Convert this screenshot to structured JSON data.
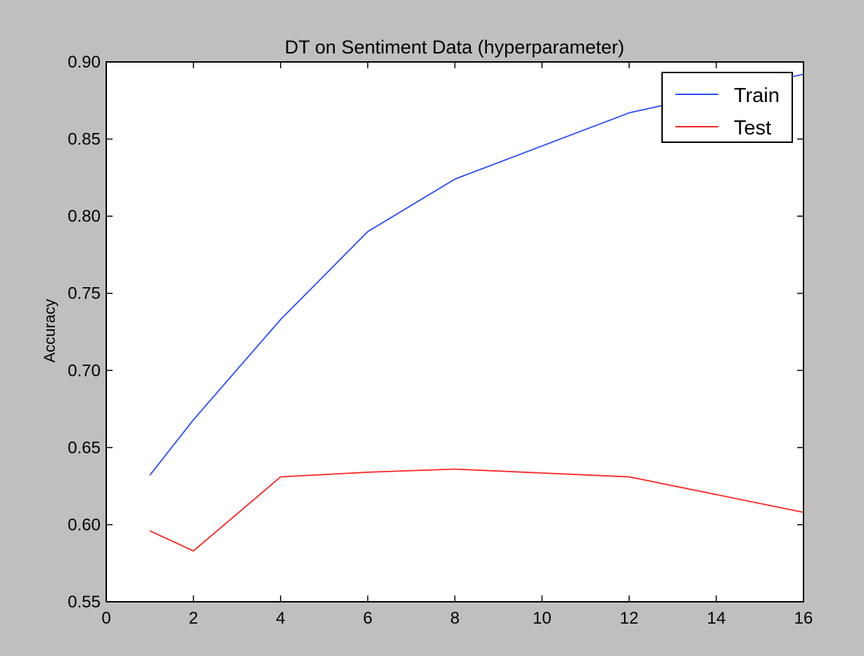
{
  "colors": {
    "figure_bg": "#bfbfbf",
    "axes_bg": "#ffffff",
    "train": "#2b4cff",
    "test": "#ff2222"
  },
  "chart_data": {
    "type": "line",
    "title": "DT on Sentiment Data (hyperparameter)",
    "xlabel": "",
    "ylabel": "Accuracy",
    "xlim": [
      0,
      16
    ],
    "ylim": [
      0.55,
      0.9
    ],
    "xticks": [
      0,
      2,
      4,
      6,
      8,
      10,
      12,
      14,
      16
    ],
    "yticks": [
      0.55,
      0.6,
      0.65,
      0.7,
      0.75,
      0.8,
      0.85,
      0.9
    ],
    "xtick_labels": [
      "0",
      "2",
      "4",
      "6",
      "8",
      "10",
      "12",
      "14",
      "16"
    ],
    "ytick_labels": [
      "0.55",
      "0.60",
      "0.65",
      "0.70",
      "0.75",
      "0.80",
      "0.85",
      "0.90"
    ],
    "grid": false,
    "legend": "top-right",
    "series": [
      {
        "name": "Train",
        "color": "#2b4cff",
        "x": [
          1,
          2,
          4,
          6,
          8,
          12,
          16
        ],
        "y": [
          0.632,
          0.668,
          0.733,
          0.79,
          0.824,
          0.867,
          0.892
        ]
      },
      {
        "name": "Test",
        "color": "#ff2222",
        "x": [
          1,
          2,
          4,
          6,
          8,
          12,
          16
        ],
        "y": [
          0.596,
          0.583,
          0.631,
          0.634,
          0.636,
          0.631,
          0.608
        ]
      }
    ]
  }
}
